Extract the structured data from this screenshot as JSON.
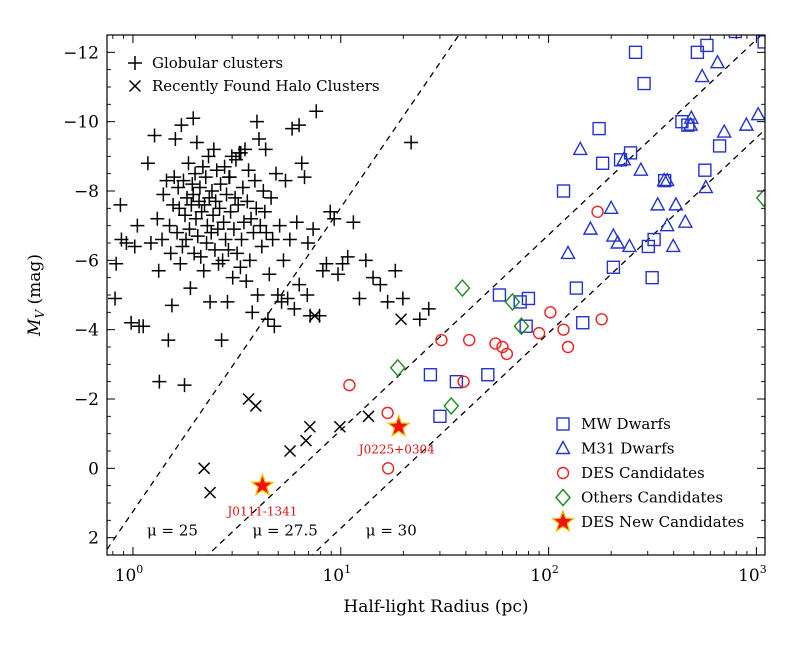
{
  "chart_data": {
    "type": "scatter",
    "xlabel": "Half-light Radius (pc)",
    "ylabel": "M_V (mag)",
    "xscale": "log",
    "xlim": [
      0.75,
      1100
    ],
    "ylim": [
      2.5,
      -12.5
    ],
    "x_ticks": [
      {
        "value": 1,
        "base": "10",
        "exp": "0"
      },
      {
        "value": 10,
        "base": "10",
        "exp": "1"
      },
      {
        "value": 100,
        "base": "10",
        "exp": "2"
      },
      {
        "value": 1000,
        "base": "10",
        "exp": "3"
      }
    ],
    "y_ticks": [
      {
        "value": -12,
        "label": "−12"
      },
      {
        "value": -10,
        "label": "−10"
      },
      {
        "value": -8,
        "label": "−8"
      },
      {
        "value": -6,
        "label": "−6"
      },
      {
        "value": -4,
        "label": "−4"
      },
      {
        "value": -2,
        "label": "−2"
      },
      {
        "value": 0,
        "label": "0"
      },
      {
        "value": 2,
        "label": "2"
      }
    ],
    "legend_top_left": [
      {
        "marker": "plus",
        "label": "Globular clusters"
      },
      {
        "marker": "cross",
        "label": "Recently Found Halo Clusters"
      }
    ],
    "legend_bottom_right": [
      {
        "marker": "square",
        "label": "MW Dwarfs"
      },
      {
        "marker": "triangle",
        "label": "M31 Dwarfs"
      },
      {
        "marker": "circle",
        "label": "DES Candidates"
      },
      {
        "marker": "diamond",
        "label": "Others Candidates"
      },
      {
        "marker": "star",
        "label": "DES New Candidates"
      }
    ],
    "colors": {
      "globular": "#000000",
      "halo": "#000000",
      "mw": "#2233cc",
      "m31": "#2233cc",
      "des": "#ee2222",
      "others": "#1a8a1a",
      "star_fill": "#ee1111",
      "star_edge": "#f2c200",
      "annotation": "#dd1111"
    },
    "distance_lines": [
      {
        "label": "μ = 25",
        "x1": 0.7,
        "y1": 2.6,
        "x2": 38,
        "y2": -12.6
      },
      {
        "label": "μ = 27.5",
        "x1": 2.2,
        "y1": 2.6,
        "x2": 1100,
        "y2": -12.6
      },
      {
        "label": "μ = 30",
        "x1": 7.0,
        "y1": 2.6,
        "x2": 3500,
        "y2": -12.6
      }
    ],
    "distance_label_positions": [
      {
        "x": 1.55,
        "y": 1.8
      },
      {
        "x": 5.4,
        "y": 1.8
      },
      {
        "x": 17.5,
        "y": 1.8
      }
    ],
    "series": [
      {
        "name": "Globular clusters",
        "marker": "plus",
        "color": "#000000",
        "points": [
          [
            0.82,
            -4.9
          ],
          [
            0.83,
            -5.9
          ],
          [
            0.87,
            -7.6
          ],
          [
            0.88,
            -6.6
          ],
          [
            0.93,
            -6.5
          ],
          [
            0.98,
            -4.2
          ],
          [
            1.02,
            -6.4
          ],
          [
            1.05,
            -7.0
          ],
          [
            1.07,
            -4.1
          ],
          [
            1.12,
            -4.1
          ],
          [
            1.18,
            -8.8
          ],
          [
            1.22,
            -6.5
          ],
          [
            1.27,
            -9.6
          ],
          [
            1.31,
            -7.2
          ],
          [
            1.33,
            -5.7
          ],
          [
            1.34,
            -2.5
          ],
          [
            1.38,
            -6.6
          ],
          [
            1.4,
            -7.9
          ],
          [
            1.45,
            -8.3
          ],
          [
            1.48,
            -3.7
          ],
          [
            1.5,
            -7.0
          ],
          [
            1.52,
            -6.2
          ],
          [
            1.54,
            -4.7
          ],
          [
            1.56,
            -7.6
          ],
          [
            1.58,
            -8.4
          ],
          [
            1.6,
            -9.5
          ],
          [
            1.63,
            -6.8
          ],
          [
            1.65,
            -8.1
          ],
          [
            1.67,
            -7.5
          ],
          [
            1.69,
            -5.9
          ],
          [
            1.71,
            -9.9
          ],
          [
            1.73,
            -6.4
          ],
          [
            1.75,
            -8.3
          ],
          [
            1.77,
            -2.4
          ],
          [
            1.78,
            -7.3
          ],
          [
            1.8,
            -6.6
          ],
          [
            1.82,
            -7.8
          ],
          [
            1.85,
            -8.8
          ],
          [
            1.87,
            -6.9
          ],
          [
            1.89,
            -5.2
          ],
          [
            1.91,
            -7.6
          ],
          [
            1.93,
            -8.2
          ],
          [
            1.95,
            -7.9
          ],
          [
            1.97,
            -6.2
          ],
          [
            1.99,
            -8.5
          ],
          [
            2.01,
            -7.2
          ],
          [
            2.03,
            -9.4
          ],
          [
            2.05,
            -6.7
          ],
          [
            2.08,
            -7.7
          ],
          [
            2.1,
            -8.1
          ],
          [
            2.12,
            -6.1
          ],
          [
            2.14,
            -7.4
          ],
          [
            2.17,
            -8.7
          ],
          [
            2.19,
            -5.7
          ],
          [
            2.21,
            -7.6
          ],
          [
            2.24,
            -8.4
          ],
          [
            2.26,
            -6.5
          ],
          [
            2.28,
            -7.0
          ],
          [
            2.31,
            -9.0
          ],
          [
            2.33,
            -7.8
          ],
          [
            2.35,
            -4.8
          ],
          [
            2.38,
            -6.8
          ],
          [
            2.4,
            -8.0
          ],
          [
            2.43,
            -7.3
          ],
          [
            2.45,
            -9.2
          ],
          [
            2.48,
            -6.3
          ],
          [
            2.5,
            -7.7
          ],
          [
            2.53,
            -8.6
          ],
          [
            2.56,
            -6.9
          ],
          [
            2.58,
            -5.9
          ],
          [
            2.61,
            -7.5
          ],
          [
            2.64,
            -8.2
          ],
          [
            2.67,
            -3.7
          ],
          [
            2.7,
            -6.0
          ],
          [
            2.73,
            -7.1
          ],
          [
            2.76,
            -8.7
          ],
          [
            2.79,
            -6.6
          ],
          [
            2.82,
            -7.9
          ],
          [
            2.85,
            -4.8
          ],
          [
            2.88,
            -6.3
          ],
          [
            2.92,
            -8.4
          ],
          [
            2.95,
            -7.4
          ],
          [
            2.99,
            -9.0
          ],
          [
            3.02,
            -5.5
          ],
          [
            3.06,
            -6.9
          ],
          [
            3.1,
            -7.8
          ],
          [
            3.13,
            -8.9
          ],
          [
            3.17,
            -6.2
          ],
          [
            3.21,
            -7.6
          ],
          [
            3.25,
            -9.1
          ],
          [
            3.29,
            -5.8
          ],
          [
            3.33,
            -6.6
          ],
          [
            3.38,
            -8.1
          ],
          [
            3.42,
            -7.1
          ],
          [
            3.46,
            -9.2
          ],
          [
            3.51,
            -5.4
          ],
          [
            3.55,
            -7.7
          ],
          [
            3.6,
            -8.6
          ],
          [
            3.65,
            -6.0
          ],
          [
            3.7,
            -7.2
          ],
          [
            3.75,
            -4.5
          ],
          [
            3.8,
            -6.8
          ],
          [
            3.86,
            -8.3
          ],
          [
            3.92,
            -7.5
          ],
          [
            3.98,
            -5.0
          ],
          [
            4.04,
            -9.5
          ],
          [
            4.1,
            -7.0
          ],
          [
            4.17,
            -6.4
          ],
          [
            4.24,
            -8.0
          ],
          [
            4.31,
            -7.4
          ],
          [
            4.38,
            -6.8
          ],
          [
            4.46,
            -4.3
          ],
          [
            4.53,
            -5.6
          ],
          [
            4.62,
            -7.8
          ],
          [
            4.7,
            -6.6
          ],
          [
            4.79,
            -4.1
          ],
          [
            4.88,
            -8.5
          ],
          [
            4.98,
            -5.0
          ],
          [
            5.08,
            -7.0
          ],
          [
            5.19,
            -4.8
          ],
          [
            5.3,
            -6.0
          ],
          [
            5.42,
            -8.3
          ],
          [
            5.55,
            -4.9
          ],
          [
            5.69,
            -6.6
          ],
          [
            5.83,
            -9.8
          ],
          [
            5.98,
            -4.6
          ],
          [
            6.14,
            -7.1
          ],
          [
            6.31,
            -5.3
          ],
          [
            6.49,
            -8.8
          ],
          [
            6.69,
            -8.4
          ],
          [
            6.9,
            -5.0
          ],
          [
            7.12,
            -4.4
          ],
          [
            7.36,
            -6.9
          ],
          [
            7.62,
            -10.3
          ],
          [
            7.9,
            -4.4
          ],
          [
            8.2,
            -5.7
          ],
          [
            8.53,
            -5.9
          ],
          [
            8.9,
            -7.4
          ],
          [
            9.3,
            -7.2
          ],
          [
            9.7,
            -5.6
          ],
          [
            10.2,
            -5.9
          ],
          [
            10.8,
            -6.1
          ],
          [
            11.5,
            -7.1
          ],
          [
            12.3,
            -4.9
          ],
          [
            13.2,
            -6.0
          ],
          [
            14.3,
            -5.5
          ],
          [
            15.5,
            -5.3
          ],
          [
            16.8,
            -4.8
          ],
          [
            18.3,
            -5.7
          ],
          [
            19.9,
            -4.9
          ],
          [
            21.8,
            -9.4
          ],
          [
            24,
            -4.3
          ],
          [
            26.5,
            -4.6
          ],
          [
            6.3,
            -9.9
          ],
          [
            3.95,
            -10.0
          ],
          [
            3.3,
            -9.1
          ],
          [
            4.35,
            -9.2
          ],
          [
            2.9,
            -8.4
          ],
          [
            1.95,
            -10.1
          ],
          [
            6.95,
            -6.5
          ]
        ]
      },
      {
        "name": "Recently Found Halo Clusters",
        "marker": "cross",
        "color": "#000000",
        "points": [
          [
            2.2,
            0.0
          ],
          [
            2.35,
            0.7
          ],
          [
            3.6,
            -2.0
          ],
          [
            3.9,
            -1.8
          ],
          [
            5.7,
            -0.5
          ],
          [
            6.8,
            -0.8
          ],
          [
            7.1,
            -1.2
          ],
          [
            7.5,
            -4.4
          ],
          [
            9.9,
            -1.2
          ],
          [
            13.6,
            -1.5
          ],
          [
            19.5,
            -4.3
          ]
        ]
      },
      {
        "name": "MW Dwarfs",
        "marker": "square",
        "color": "#2233cc",
        "points": [
          [
            27,
            -2.7
          ],
          [
            30,
            -1.5
          ],
          [
            36,
            -2.5
          ],
          [
            51,
            -2.7
          ],
          [
            58,
            -5.0
          ],
          [
            73,
            -4.8
          ],
          [
            80,
            -4.9
          ],
          [
            78,
            -4.1
          ],
          [
            118,
            -8.0
          ],
          [
            136,
            -5.2
          ],
          [
            146,
            -4.2
          ],
          [
            175,
            -9.8
          ],
          [
            182,
            -8.8
          ],
          [
            205,
            -5.8
          ],
          [
            222,
            -8.9
          ],
          [
            248,
            -9.1
          ],
          [
            262,
            -12.0
          ],
          [
            288,
            -11.1
          ],
          [
            302,
            -6.4
          ],
          [
            315,
            -5.5
          ],
          [
            322,
            -6.6
          ],
          [
            468,
            -9.9
          ],
          [
            520,
            -12.0
          ],
          [
            565,
            -8.6
          ],
          [
            578,
            -12.2
          ],
          [
            665,
            -9.3
          ],
          [
            792,
            -12.6
          ],
          [
            1090,
            -12.3
          ],
          [
            362,
            -8.3
          ],
          [
            438,
            -10.0
          ]
        ]
      },
      {
        "name": "M31 Dwarfs",
        "marker": "triangle",
        "color": "#2233cc",
        "points": [
          [
            124,
            -6.2
          ],
          [
            142,
            -9.2
          ],
          [
            159,
            -6.9
          ],
          [
            200,
            -7.5
          ],
          [
            205,
            -6.7
          ],
          [
            215,
            -6.5
          ],
          [
            230,
            -8.9
          ],
          [
            245,
            -6.4
          ],
          [
            278,
            -8.6
          ],
          [
            335,
            -7.6
          ],
          [
            360,
            -8.3
          ],
          [
            372,
            -8.3
          ],
          [
            372,
            -7.0
          ],
          [
            398,
            -6.4
          ],
          [
            455,
            -7.1
          ],
          [
            482,
            -9.9
          ],
          [
            486,
            -10.1
          ],
          [
            548,
            -11.3
          ],
          [
            571,
            -8.1
          ],
          [
            650,
            -11.7
          ],
          [
            700,
            -9.7
          ],
          [
            895,
            -9.9
          ],
          [
            1020,
            -10.2
          ],
          [
            410,
            -7.6
          ]
        ]
      },
      {
        "name": "DES Candidates",
        "marker": "circle",
        "color": "#ee2222",
        "points": [
          [
            11,
            -2.4
          ],
          [
            16.8,
            -1.6
          ],
          [
            16.9,
            0.0
          ],
          [
            30.5,
            -3.7
          ],
          [
            39,
            -2.5
          ],
          [
            41.5,
            -3.7
          ],
          [
            55.5,
            -3.6
          ],
          [
            60,
            -3.5
          ],
          [
            63,
            -3.3
          ],
          [
            90,
            -3.9
          ],
          [
            102,
            -4.5
          ],
          [
            118,
            -4.0
          ],
          [
            124,
            -3.5
          ],
          [
            172,
            -7.4
          ],
          [
            180,
            -4.3
          ]
        ]
      },
      {
        "name": "Others Candidates",
        "marker": "diamond",
        "color": "#1a8a1a",
        "points": [
          [
            18.8,
            -2.9
          ],
          [
            34,
            -1.8
          ],
          [
            38.5,
            -5.2
          ],
          [
            67,
            -4.8
          ],
          [
            74,
            -4.1
          ],
          [
            1085,
            -7.8
          ]
        ]
      }
    ],
    "new_candidates": [
      {
        "label": "J0111-1341",
        "x": 4.2,
        "y": 0.5,
        "label_x": 4.2,
        "label_y": 1.25
      },
      {
        "label": "J0225+0304",
        "x": 19.0,
        "y": -1.2,
        "label_x": 18.6,
        "label_y": -0.55
      }
    ]
  }
}
